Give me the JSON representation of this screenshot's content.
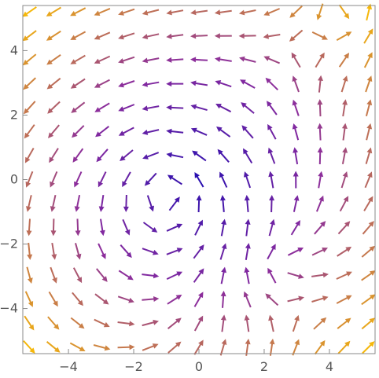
{
  "chart_data": {
    "type": "vector-field",
    "title": "",
    "xlabel": "",
    "ylabel": "",
    "xlim": [
      -5.4,
      5.4
    ],
    "ylim": [
      -5.4,
      5.4
    ],
    "grid": false,
    "x_ticks": [
      -4,
      -2,
      0,
      2,
      4
    ],
    "y_ticks": [
      -4,
      -2,
      0,
      2,
      4
    ],
    "x_tick_labels": [
      "−4",
      "−2",
      "0",
      "2",
      "4"
    ],
    "y_tick_labels": [
      "−4",
      "−2",
      "0",
      "2",
      "4"
    ],
    "field": {
      "sample_range": [
        -5.2,
        5.2
      ],
      "samples_per_axis": 15,
      "sources": [
        {
          "x": -1,
          "y": 0,
          "kind": "vortex",
          "strength": 1
        },
        {
          "x": 3,
          "y": 4,
          "kind": "saddle",
          "strength": 1
        },
        {
          "x": 3,
          "y": -4,
          "kind": "saddle",
          "strength": 1
        }
      ]
    },
    "color_scale": {
      "low": "#2a0fb0",
      "mid": "#8a2c9e",
      "high": "#f5b70a"
    }
  }
}
